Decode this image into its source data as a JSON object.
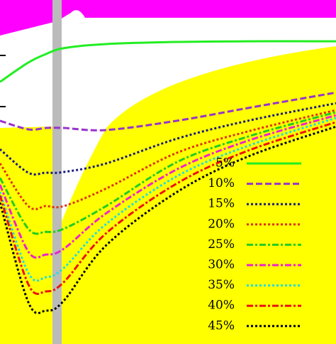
{
  "chart_data": {
    "type": "line",
    "x": [
      0,
      8.4,
      13.7,
      19.0,
      31.6,
      52.7,
      73.8,
      100
    ],
    "xlim": [
      0,
      100
    ],
    "ylim": [
      0,
      100
    ],
    "series": [
      {
        "name": "5%",
        "color": "#22ee22",
        "style": "solid",
        "values": [
          76.2,
          81.8,
          84.3,
          86.0,
          87.2,
          87.8,
          88.0,
          88.0
        ]
      },
      {
        "name": "10%",
        "color": "#9933cc",
        "style": "dashed",
        "values": [
          64.9,
          62.4,
          62.8,
          62.8,
          62.2,
          64.9,
          68.6,
          73.1
        ]
      },
      {
        "name": "15%",
        "color": "#1a1a80",
        "style": "dotted",
        "values": [
          56.6,
          49.8,
          49.8,
          50.0,
          52.5,
          59.7,
          64.9,
          70.0
        ]
      },
      {
        "name": "20%",
        "color": "#dd3311",
        "style": "dotted",
        "values": [
          52.5,
          40.1,
          40.1,
          40.1,
          45.2,
          55.6,
          61.8,
          68.0
        ]
      },
      {
        "name": "25%",
        "color": "#22cc22",
        "style": "dashdot",
        "values": [
          48.3,
          33.5,
          32.6,
          33.5,
          40.1,
          52.9,
          60.3,
          67.4
        ]
      },
      {
        "name": "30%",
        "color": "#ee22cc",
        "style": "dashdot",
        "values": [
          46.3,
          26.9,
          26.0,
          27.7,
          38.0,
          50.8,
          59.1,
          66.5
        ]
      },
      {
        "name": "35%",
        "color": "#22dddd",
        "style": "dotted",
        "values": [
          44.2,
          20.7,
          19.4,
          22.1,
          34.9,
          48.8,
          57.6,
          65.7
        ]
      },
      {
        "name": "40%",
        "color": "#ee1111",
        "style": "dashdot",
        "values": [
          43.2,
          17.4,
          15.3,
          18.0,
          32.2,
          46.7,
          56.2,
          64.5
        ]
      },
      {
        "name": "45%",
        "color": "#000000",
        "style": "dotted",
        "values": [
          41.1,
          12.2,
          9.7,
          12.6,
          28.7,
          44.2,
          54.5,
          63.2
        ]
      }
    ]
  }
}
